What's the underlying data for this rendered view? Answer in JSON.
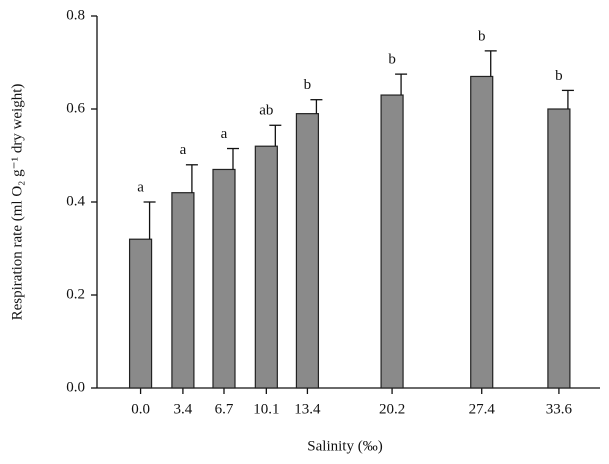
{
  "chart_data": {
    "type": "bar",
    "x_label": "Salinity (‰)",
    "y_label": "Respiration rate (ml O₂ g⁻¹ dry weight)",
    "x": [
      0,
      3.4,
      6.7,
      10.1,
      13.4,
      20.2,
      27.4,
      33.6
    ],
    "values": [
      0.32,
      0.42,
      0.47,
      0.52,
      0.59,
      0.63,
      0.67,
      0.6
    ],
    "errors": [
      0.08,
      0.06,
      0.045,
      0.045,
      0.03,
      0.045,
      0.055,
      0.04
    ],
    "letters": [
      "a",
      "a",
      "a",
      "ab",
      "b",
      "b",
      "b",
      "b"
    ],
    "color": "#8a8a8a",
    "xlim": [
      -3.5,
      36.9
    ],
    "xticks": [
      {
        "value": 0,
        "label": "0.0"
      },
      3.4,
      6.7,
      10.1,
      13.4,
      20.2,
      27.4,
      33.6
    ],
    "ylim": [
      0,
      0.8
    ],
    "yticks": [
      {
        "value": 0,
        "label": "0.0"
      },
      0.2,
      0.4,
      0.6,
      0.8
    ]
  }
}
